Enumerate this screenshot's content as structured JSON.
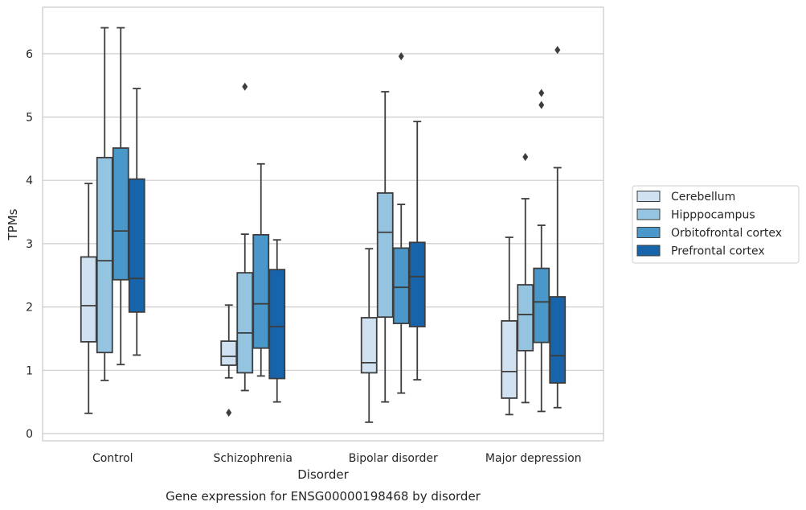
{
  "caption": "Gene expression for ENSG00000198468 by disorder",
  "chart_data": {
    "type": "box",
    "xlabel": "Disorder",
    "ylabel": "TPMs",
    "ylim": [
      -0.1,
      6.75
    ],
    "yticks": [
      0,
      1,
      2,
      3,
      4,
      5,
      6
    ],
    "grid": "horizontal",
    "legend_position": "right",
    "categories": [
      "Control",
      "Schizophrenia",
      "Bipolar disorder",
      "Major depression"
    ],
    "series": [
      {
        "name": "Cerebellum",
        "color": "#d0e1f2",
        "boxes": [
          {
            "whisker_low": 0.32,
            "q1": 1.45,
            "median": 2.02,
            "q3": 2.79,
            "whisker_high": 3.95,
            "outliers": []
          },
          {
            "whisker_low": 0.88,
            "q1": 1.08,
            "median": 1.22,
            "q3": 1.46,
            "whisker_high": 2.03,
            "outliers": [
              0.33
            ]
          },
          {
            "whisker_low": 0.18,
            "q1": 0.96,
            "median": 1.12,
            "q3": 1.83,
            "whisker_high": 2.92,
            "outliers": []
          },
          {
            "whisker_low": 0.3,
            "q1": 0.56,
            "median": 0.98,
            "q3": 1.78,
            "whisker_high": 3.1,
            "outliers": []
          }
        ]
      },
      {
        "name": "Hipppocampus",
        "color": "#94c4df",
        "boxes": [
          {
            "whisker_low": 0.84,
            "q1": 1.28,
            "median": 2.73,
            "q3": 4.36,
            "whisker_high": 6.41,
            "outliers": []
          },
          {
            "whisker_low": 0.68,
            "q1": 0.96,
            "median": 1.59,
            "q3": 2.54,
            "whisker_high": 3.15,
            "outliers": [
              5.48
            ]
          },
          {
            "whisker_low": 0.5,
            "q1": 1.84,
            "median": 3.18,
            "q3": 3.8,
            "whisker_high": 5.4,
            "outliers": []
          },
          {
            "whisker_low": 0.49,
            "q1": 1.31,
            "median": 1.88,
            "q3": 2.35,
            "whisker_high": 3.71,
            "outliers": [
              4.37
            ]
          }
        ]
      },
      {
        "name": "Orbitofrontal cortex",
        "color": "#4a98c9",
        "boxes": [
          {
            "whisker_low": 1.09,
            "q1": 2.43,
            "median": 3.2,
            "q3": 4.51,
            "whisker_high": 6.41,
            "outliers": []
          },
          {
            "whisker_low": 0.91,
            "q1": 1.35,
            "median": 2.05,
            "q3": 3.14,
            "whisker_high": 4.26,
            "outliers": []
          },
          {
            "whisker_low": 0.64,
            "q1": 1.74,
            "median": 2.31,
            "q3": 2.93,
            "whisker_high": 3.62,
            "outliers": [
              5.96
            ]
          },
          {
            "whisker_low": 0.35,
            "q1": 1.44,
            "median": 2.08,
            "q3": 2.61,
            "whisker_high": 3.29,
            "outliers": [
              5.19,
              5.38
            ]
          }
        ]
      },
      {
        "name": "Prefrontal cortex",
        "color": "#1764ab",
        "boxes": [
          {
            "whisker_low": 1.24,
            "q1": 1.92,
            "median": 2.45,
            "q3": 4.02,
            "whisker_high": 5.45,
            "outliers": []
          },
          {
            "whisker_low": 0.5,
            "q1": 0.87,
            "median": 1.69,
            "q3": 2.59,
            "whisker_high": 3.06,
            "outliers": []
          },
          {
            "whisker_low": 0.85,
            "q1": 1.69,
            "median": 2.48,
            "q3": 3.02,
            "whisker_high": 4.93,
            "outliers": []
          },
          {
            "whisker_low": 0.41,
            "q1": 0.8,
            "median": 1.23,
            "q3": 2.16,
            "whisker_high": 4.2,
            "outliers": [
              6.06
            ]
          }
        ]
      }
    ]
  }
}
